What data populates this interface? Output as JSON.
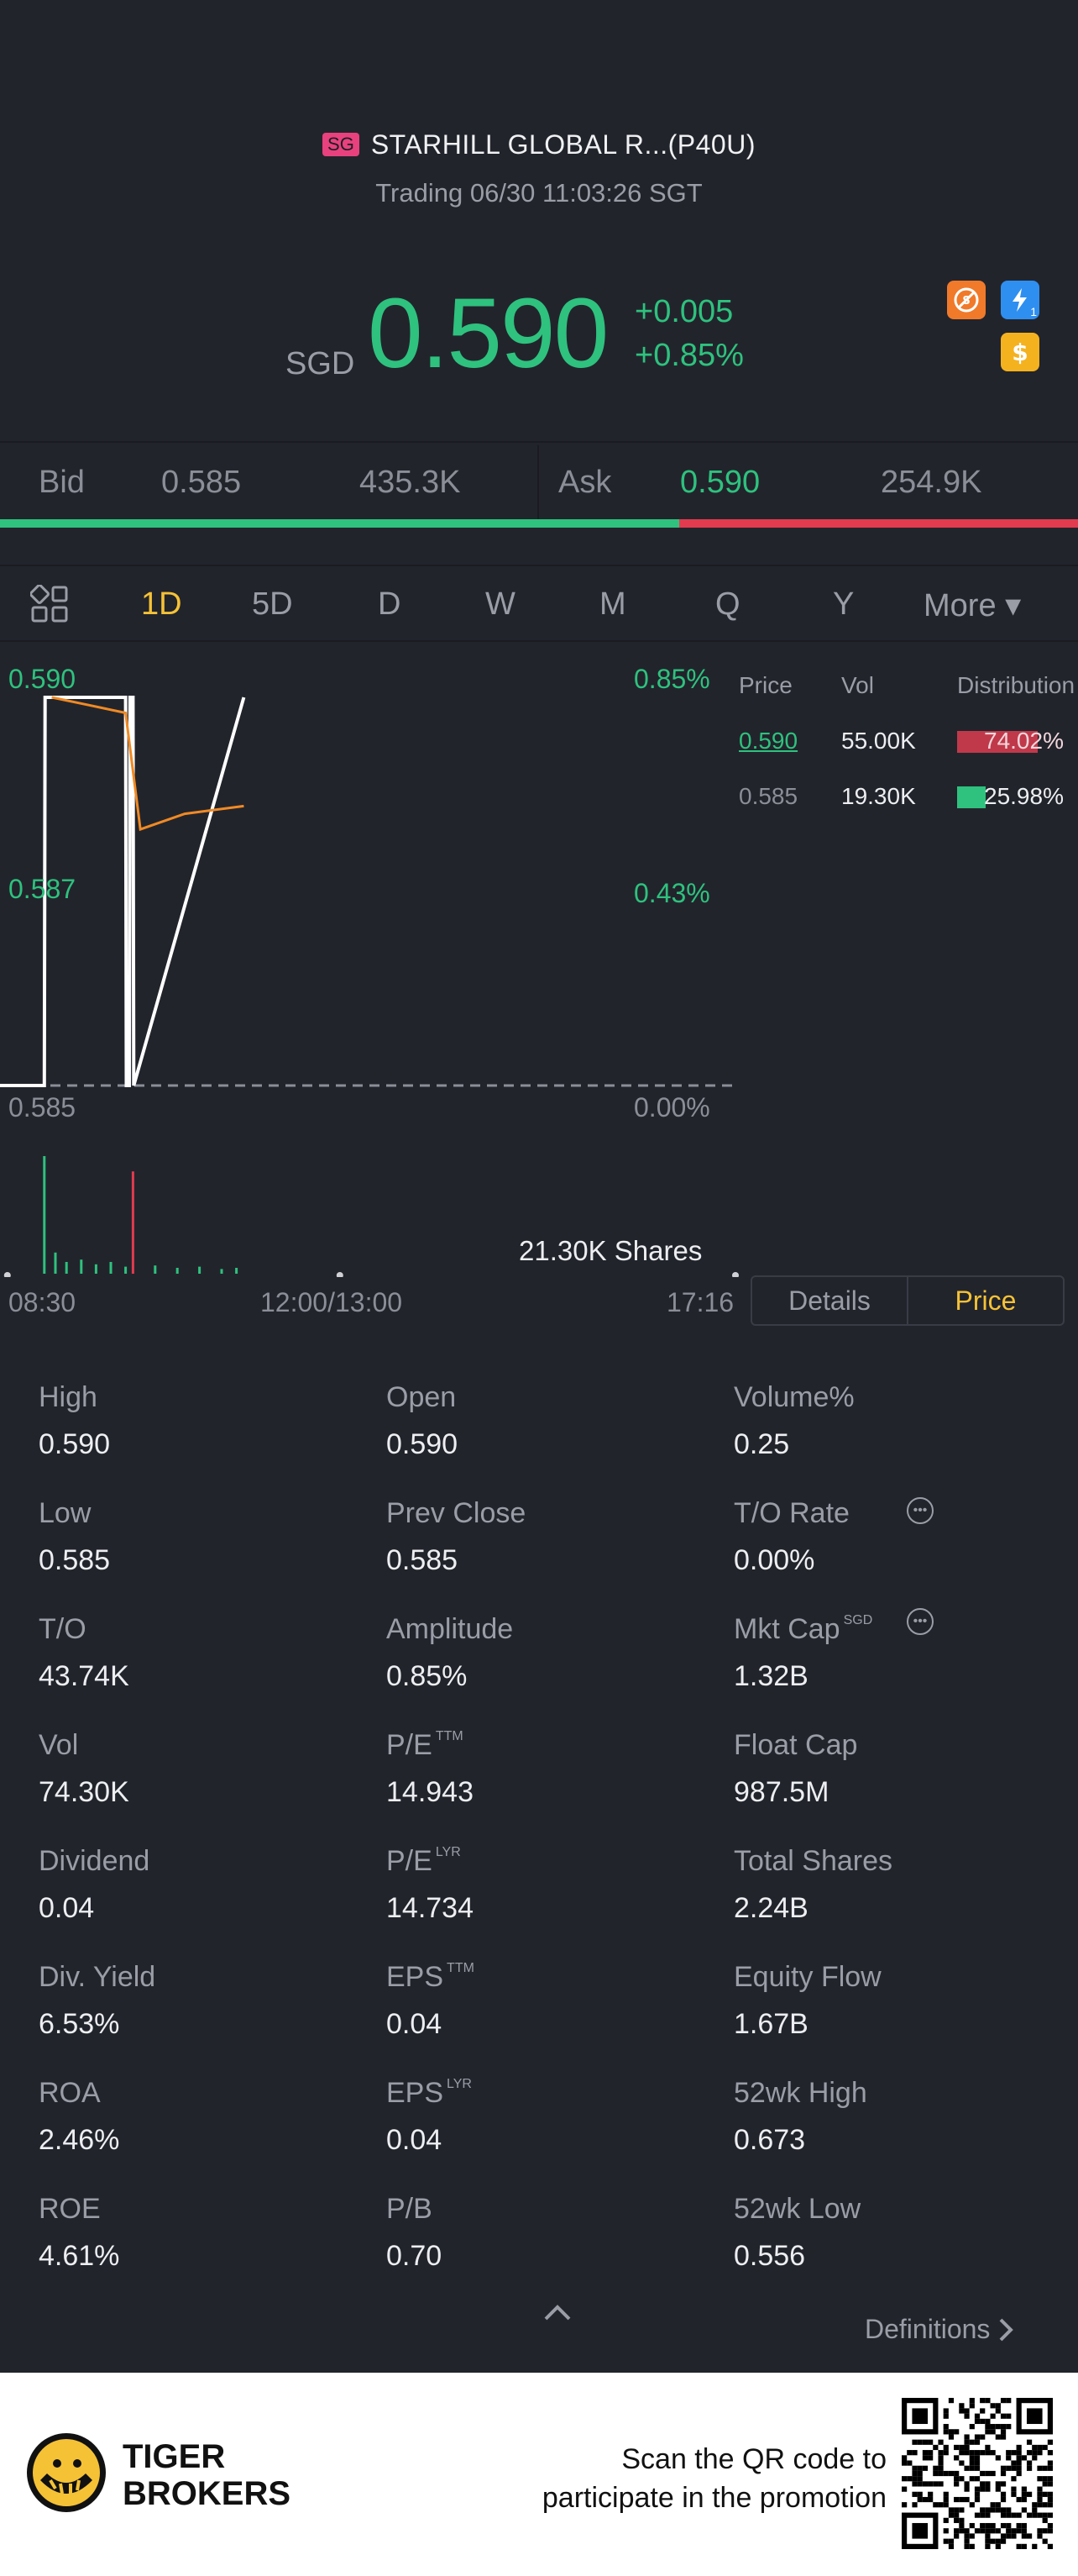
{
  "header": {
    "market_badge": "SG",
    "stock_name": "STARHILL GLOBAL R...(P40U)",
    "trading_status": "Trading 06/30 11:03:26 SGT"
  },
  "quote": {
    "currency": "SGD",
    "price": "0.590",
    "change": "+0.005",
    "change_pct": "+0.85%",
    "icons": [
      "no-short-icon",
      "flash-icon",
      "dollar-icon"
    ],
    "flash_badge": "1"
  },
  "bid_ask": {
    "bid_label": "Bid",
    "bid_price": "0.585",
    "bid_volume": "435.3K",
    "ask_label": "Ask",
    "ask_price": "0.590",
    "ask_volume": "254.9K",
    "bid_fraction": 0.63
  },
  "tabs": {
    "items": [
      "1D",
      "5D",
      "D",
      "W",
      "M",
      "Q",
      "Y",
      "More ▾"
    ],
    "active": "1D"
  },
  "chart": {
    "y_top": "0.590",
    "y_mid": "0.587",
    "y_bottom": "0.585",
    "pct_top": "0.85%",
    "pct_mid": "0.43%",
    "pct_bottom": "0.00%",
    "volume_label": "21.30K Shares",
    "time_start": "08:30",
    "time_mid": "12:00/13:00",
    "time_end": "17:16"
  },
  "chart_data": {
    "type": "line",
    "title": "",
    "xlabel": "",
    "ylabel": "",
    "x_ticks": [
      "08:30",
      "12:00/13:00",
      "17:16"
    ],
    "ylim": [
      0.585,
      0.59
    ],
    "series": [
      {
        "values_desc": "price",
        "x": [
          0,
          0.06,
          0.061,
          0.17,
          0.171,
          0.175,
          0.176,
          0.18,
          0.181,
          0.33
        ],
        "y": [
          0.585,
          0.585,
          0.59,
          0.59,
          0.585,
          0.585,
          0.59,
          0.59,
          0.585,
          0.59
        ]
      },
      {
        "values_desc": "average",
        "x": [
          0.07,
          0.12,
          0.17,
          0.19,
          0.25,
          0.33
        ],
        "y": [
          0.59,
          0.5899,
          0.5898,
          0.5883,
          0.5885,
          0.5886
        ]
      }
    ],
    "volume_bars": [
      {
        "x": 0.06,
        "v": 1.0,
        "color": "#2ec27e"
      },
      {
        "x": 0.075,
        "v": 0.18,
        "color": "#2ec27e"
      },
      {
        "x": 0.09,
        "v": 0.1,
        "color": "#2ec27e"
      },
      {
        "x": 0.11,
        "v": 0.12,
        "color": "#2ec27e"
      },
      {
        "x": 0.13,
        "v": 0.08,
        "color": "#2ec27e"
      },
      {
        "x": 0.15,
        "v": 0.1,
        "color": "#2ec27e"
      },
      {
        "x": 0.17,
        "v": 0.06,
        "color": "#2ec27e"
      },
      {
        "x": 0.18,
        "v": 0.87,
        "color": "#e23b4f"
      },
      {
        "x": 0.21,
        "v": 0.07,
        "color": "#2ec27e"
      },
      {
        "x": 0.24,
        "v": 0.05,
        "color": "#2ec27e"
      },
      {
        "x": 0.27,
        "v": 0.06,
        "color": "#2ec27e"
      },
      {
        "x": 0.3,
        "v": 0.04,
        "color": "#2ec27e"
      },
      {
        "x": 0.32,
        "v": 0.05,
        "color": "#2ec27e"
      }
    ]
  },
  "distribution": {
    "headers": [
      "Price",
      "Vol",
      "Distribution"
    ],
    "rows": [
      {
        "price": "0.590",
        "vol": "55.00K",
        "pct": "74.02%",
        "fraction": 0.7402,
        "color": "#c0394a"
      },
      {
        "price": "0.585",
        "vol": "19.30K",
        "pct": "25.98%",
        "fraction": 0.2598,
        "color": "#2ec27e"
      }
    ]
  },
  "detail_toggle": {
    "details": "Details",
    "price": "Price"
  },
  "stats": [
    [
      {
        "label": "High",
        "value": "0.590"
      },
      {
        "label": "Open",
        "value": "0.590"
      },
      {
        "label": "Volume%",
        "value": "0.25"
      }
    ],
    [
      {
        "label": "Low",
        "value": "0.585"
      },
      {
        "label": "Prev Close",
        "value": "0.585"
      },
      {
        "label": "T/O Rate",
        "value": "0.00%"
      }
    ],
    [
      {
        "label": "T/O",
        "value": "43.74K"
      },
      {
        "label": "Amplitude",
        "value": "0.85%"
      },
      {
        "label": "Mkt Cap",
        "sup": "SGD",
        "value": "1.32B"
      }
    ],
    [
      {
        "label": "Vol",
        "value": "74.30K"
      },
      {
        "label": "P/E",
        "sup": "TTM",
        "value": "14.943"
      },
      {
        "label": "Float Cap",
        "value": "987.5M"
      }
    ],
    [
      {
        "label": "Dividend",
        "value": "0.04"
      },
      {
        "label": "P/E",
        "sup": "LYR",
        "value": "14.734"
      },
      {
        "label": "Total Shares",
        "value": "2.24B"
      }
    ],
    [
      {
        "label": "Div. Yield",
        "value": "6.53%"
      },
      {
        "label": "EPS",
        "sup": "TTM",
        "value": "0.04"
      },
      {
        "label": "Equity Flow",
        "value": "1.67B"
      }
    ],
    [
      {
        "label": "ROA",
        "value": "2.46%"
      },
      {
        "label": "EPS",
        "sup": "LYR",
        "value": "0.04"
      },
      {
        "label": "52wk High",
        "value": "0.673"
      }
    ],
    [
      {
        "label": "ROE",
        "value": "4.61%"
      },
      {
        "label": "P/B",
        "value": "0.70"
      },
      {
        "label": "52wk Low",
        "value": "0.556"
      }
    ]
  ],
  "definitions": "Definitions",
  "footer": {
    "brand_line1": "TIGER",
    "brand_line2": "BROKERS",
    "promo_line1": "Scan the QR code to",
    "promo_line2": "participate in the promotion"
  },
  "colors": {
    "background": "#22242c",
    "up": "#2ec27e",
    "down": "#e23b4f",
    "accent": "#f5c236"
  }
}
